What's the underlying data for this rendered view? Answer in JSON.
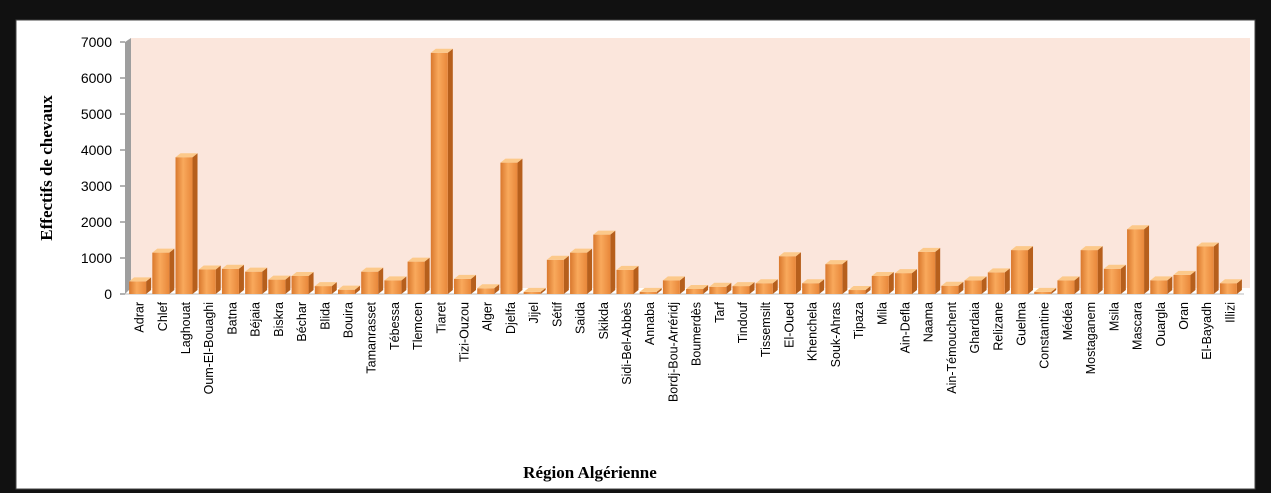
{
  "chart_data": {
    "type": "bar",
    "xlabel": "Région Algérienne",
    "ylabel": "Effectifs de chevaux",
    "ylim": [
      0,
      7000
    ],
    "yticks": [
      0,
      1000,
      2000,
      3000,
      4000,
      5000,
      6000,
      7000
    ],
    "grid": false,
    "legend": "none",
    "categories": [
      "Adrar",
      "Chlef",
      "Laghouat",
      "Oum-El-Bouaghi",
      "Batna",
      "Béjaia",
      "Biskra",
      "Béchar",
      "Blida",
      "Bouira",
      "Tamanrasset",
      "Tébessa",
      "Tlemcen",
      "Tiaret",
      "Tizi-Ouzou",
      "Alger",
      "Djelfa",
      "Jijel",
      "Sétif",
      "Saida",
      "Skikda",
      "Sidi-Bel-Abbès",
      "Annaba",
      "Bordj-Bou-Arréridj",
      "Boumerdès",
      "Tarf",
      "Tindouf",
      "Tissemsilt",
      "El-Oued",
      "Khenchela",
      "Souk-Ahras",
      "Tipaza",
      "Mila",
      "Ain-Defla",
      "Naama",
      "Ain-Témouchent",
      "Ghardaia",
      "Relizane",
      "Guelma",
      "Constantine",
      "Médéa",
      "Mostaganem",
      "Msila",
      "Mascara",
      "Ouargla",
      "Oran",
      "El-Bayadh",
      "Illizi"
    ],
    "values": [
      350,
      1150,
      3800,
      680,
      700,
      620,
      400,
      500,
      220,
      120,
      620,
      380,
      900,
      6700,
      420,
      160,
      3650,
      60,
      950,
      1150,
      1650,
      670,
      60,
      380,
      140,
      200,
      220,
      300,
      1050,
      300,
      830,
      110,
      500,
      580,
      1170,
      230,
      380,
      600,
      1220,
      60,
      380,
      1220,
      700,
      1800,
      380,
      530,
      1320,
      300
    ],
    "colors": {
      "front": "#f4994b",
      "top": "#fcc98a",
      "side": "#b65f1c",
      "plot_bg": "#fbe6dc",
      "wall": "#9e9e9e",
      "frame": "#111111"
    }
  }
}
